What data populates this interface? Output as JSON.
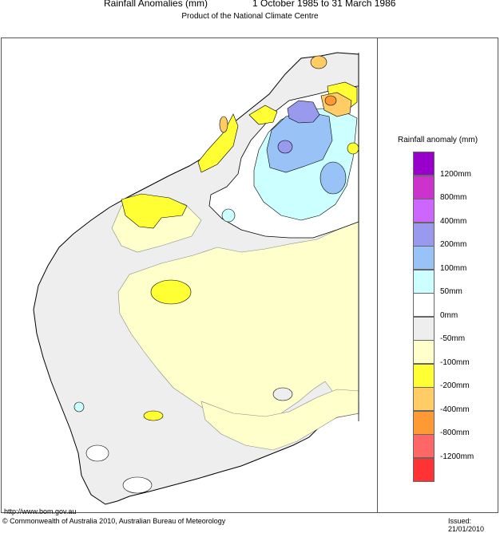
{
  "header": {
    "title": "Rainfall Anomalies (mm)",
    "period": "1 October 1985 to 31 March 1986",
    "subtitle": "Product of the National Climate Centre"
  },
  "legend": {
    "title": "Rainfall anomaly (mm)",
    "colors": [
      "#9900cc",
      "#cc33cc",
      "#cc66ff",
      "#9999ee",
      "#99c2f7",
      "#ccffff",
      "#ffffff",
      "#eeeeee",
      "#ffffcc",
      "#ffff33",
      "#ffcc66",
      "#ff9933",
      "#ff6666",
      "#ff3333"
    ],
    "labels": [
      "1200mm",
      "800mm",
      "400mm",
      "200mm",
      "100mm",
      "50mm",
      "0mm",
      "-50mm",
      "-100mm",
      "-200mm",
      "-400mm",
      "-800mm",
      "-1200mm"
    ]
  },
  "footer": {
    "url": "http://www.bom.gov.au",
    "copyright": "© Commonwealth of Australia 2010, Australian Bureau of Meteorology",
    "issued": "Issued: 21/01/2010"
  }
}
